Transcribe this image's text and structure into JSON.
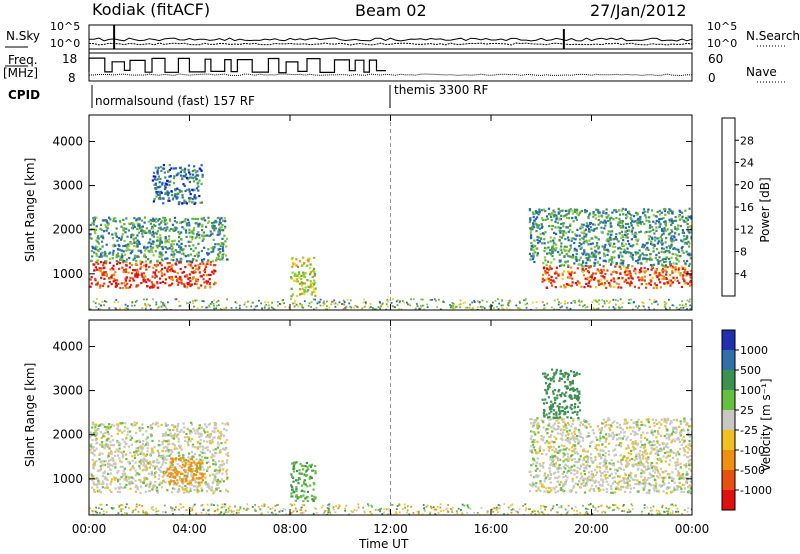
{
  "header": {
    "station": "Kodiak (fitACF)",
    "beam": "Beam 02",
    "date": "27/Jan/2012"
  },
  "top_panels": {
    "nsky_label": "N.Sky",
    "nsearch_label": "N.Search",
    "nsky_ticks": [
      "10^5",
      "10^0"
    ],
    "nsearch_ticks": [
      "10^5",
      "10^0"
    ],
    "freq_label": "Freq.",
    "freq_unit": "[MHz]",
    "freq_ticks": [
      18,
      8
    ],
    "nave_label": "Nave",
    "nave_ticks": [
      60,
      0
    ],
    "cpid_label": "CPID",
    "cpid_segments": [
      {
        "label": "normalsound (fast) 157 RF",
        "start_hour": 1.0
      },
      {
        "label": "themis 3300 RF",
        "start_hour": 12.0
      }
    ]
  },
  "axes": {
    "xlabel": "Time UT",
    "x_ticks": [
      "00:00",
      "04:00",
      "08:00",
      "12:00",
      "16:00",
      "20:00",
      "00:00"
    ],
    "x_range_hours": [
      0,
      24
    ],
    "ylabel": "Slant Range [km]",
    "y_ticks": [
      1000,
      2000,
      3000,
      4000
    ],
    "y_range_km": [
      180,
      4600
    ]
  },
  "power_colorbar": {
    "label": "Power [dB]",
    "ticks": [
      4,
      8,
      12,
      16,
      20,
      24,
      28
    ],
    "range": [
      0,
      32
    ],
    "colors": [
      "#1010e0",
      "#2060c8",
      "#3c8f68",
      "#60b040",
      "#90cc30",
      "#f0d020",
      "#f09010",
      "#e84010",
      "#e01010"
    ]
  },
  "velocity_colorbar": {
    "label": "Velocity [m s⁻¹]",
    "ticks": [
      "1000",
      "500",
      "100",
      "25",
      "-25",
      "-100",
      "-500",
      "-1000"
    ],
    "colors": [
      "#2030b0",
      "#3070a8",
      "#3c9050",
      "#66c040",
      "#c8c8c0",
      "#f0c020",
      "#f09010",
      "#e85010",
      "#e01010"
    ]
  },
  "chart_data": {
    "type": "heatmap",
    "title": "Kodiak (fitACF) Beam 02 27/Jan/2012",
    "xlabel": "Time UT",
    "ylabel": "Slant Range [km]",
    "xlim_hours": [
      0,
      24
    ],
    "ylim_km": [
      180,
      4600
    ],
    "power_regions": [
      {
        "t0": 0.0,
        "t1": 5.0,
        "r0": 700,
        "r1": 1300,
        "power_db": 28
      },
      {
        "t0": 0.0,
        "t1": 5.5,
        "r0": 1300,
        "r1": 2300,
        "power_db": 10
      },
      {
        "t0": 2.5,
        "t1": 4.5,
        "r0": 2600,
        "r1": 3500,
        "power_db": 8
      },
      {
        "t0": 8.0,
        "t1": 9.0,
        "r0": 500,
        "r1": 1400,
        "power_db": 18
      },
      {
        "t0": 18.0,
        "t1": 24.0,
        "r0": 700,
        "r1": 1200,
        "power_db": 26
      },
      {
        "t0": 17.5,
        "t1": 24.0,
        "r0": 1200,
        "r1": 2500,
        "power_db": 10
      }
    ],
    "velocity_regions": [
      {
        "t0": 0.0,
        "t1": 5.5,
        "r0": 700,
        "r1": 2300,
        "velocity_ms": 0
      },
      {
        "t0": 3.0,
        "t1": 4.5,
        "r0": 900,
        "r1": 1500,
        "velocity_ms": -200
      },
      {
        "t0": 8.0,
        "t1": 9.0,
        "r0": 500,
        "r1": 1400,
        "velocity_ms": 100
      },
      {
        "t0": 17.5,
        "t1": 24.0,
        "r0": 700,
        "r1": 2400,
        "velocity_ms": 0
      },
      {
        "t0": 18.0,
        "t1": 19.5,
        "r0": 2400,
        "r1": 3500,
        "velocity_ms": 150
      }
    ],
    "freq_mhz_range": [
      8,
      18
    ],
    "nave_range": [
      0,
      60
    ]
  }
}
